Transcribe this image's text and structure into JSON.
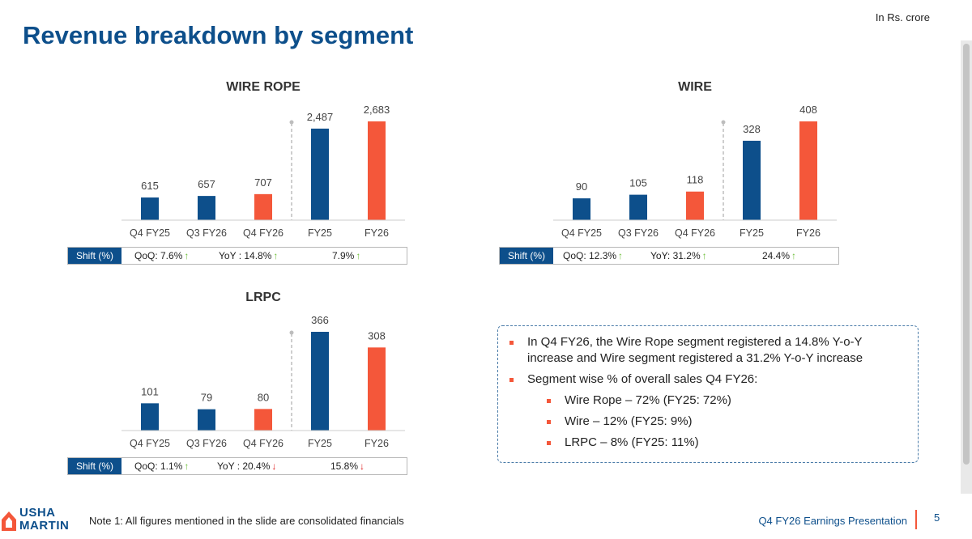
{
  "header": {
    "title": "Revenue breakdown by segment",
    "unit": "In Rs. crore"
  },
  "colors": {
    "navy": "#0d4f8b",
    "orange": "#f4573a",
    "up": "#6ebf3a",
    "down": "#e02020"
  },
  "chart_data": [
    {
      "type": "bar",
      "title": "WIRE ROPE",
      "categories": [
        "Q4 FY25",
        "Q3 FY26",
        "Q4 FY26",
        "FY25",
        "FY26"
      ],
      "values": [
        615,
        657,
        707,
        2487,
        2683
      ],
      "labels": [
        "615",
        "657",
        "707",
        "2,487",
        "2,683"
      ],
      "highlight": [
        false,
        false,
        true,
        false,
        true
      ]
    },
    {
      "type": "bar",
      "title": "WIRE",
      "categories": [
        "Q4 FY25",
        "Q3 FY26",
        "Q4 FY26",
        "FY25",
        "FY26"
      ],
      "values": [
        90,
        105,
        118,
        328,
        408
      ],
      "labels": [
        "90",
        "105",
        "118",
        "328",
        "408"
      ],
      "highlight": [
        false,
        false,
        true,
        false,
        true
      ]
    },
    {
      "type": "bar",
      "title": "LRPC",
      "categories": [
        "Q4 FY25",
        "Q3 FY26",
        "Q4 FY26",
        "FY25",
        "FY26"
      ],
      "values": [
        101,
        79,
        80,
        366,
        308
      ],
      "labels": [
        "101",
        "79",
        "80",
        "366",
        "308"
      ],
      "highlight": [
        false,
        false,
        true,
        false,
        true
      ]
    }
  ],
  "shift": [
    {
      "label": "Shift (%)",
      "qoq": "QoQ: 7.6%",
      "qoq_dir": "up",
      "yoy": "YoY : 14.8%",
      "yoy_dir": "up",
      "annual": "7.9%",
      "annual_dir": "up"
    },
    {
      "label": "Shift (%)",
      "qoq": "QoQ: 12.3%",
      "qoq_dir": "up",
      "yoy": "YoY: 31.2%",
      "yoy_dir": "up",
      "annual": "24.4%",
      "annual_dir": "up"
    },
    {
      "label": "Shift (%)",
      "qoq": "QoQ: 1.1%",
      "qoq_dir": "up",
      "yoy": "YoY : 20.4%",
      "yoy_dir": "down",
      "annual": "15.8%",
      "annual_dir": "down"
    }
  ],
  "notes": {
    "bullet1": "In Q4 FY26, the Wire Rope segment registered a 14.8% Y-o-Y increase and Wire segment registered a 31.2% Y-o-Y increase",
    "bullet2": "Segment wise % of overall sales Q4 FY26:",
    "sub": [
      "Wire Rope – 72% (FY25: 72%)",
      "Wire – 12% (FY25: 9%)",
      "LRPC – 8% (FY25:  11%)"
    ]
  },
  "footer": {
    "note": "Note 1: All figures mentioned in the slide are consolidated financials",
    "logo_line1": "USHA",
    "logo_line2": "MARTIN",
    "presentation": "Q4 FY26 Earnings Presentation",
    "page": "5"
  }
}
